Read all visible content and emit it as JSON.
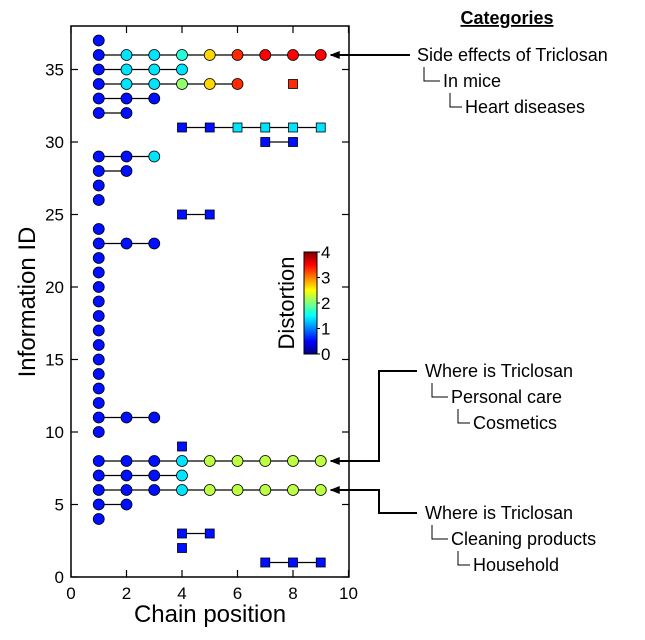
{
  "chart_data": {
    "type": "scatter",
    "title": "",
    "xlabel": "Chain position",
    "ylabel": "Information ID",
    "xlim": [
      0,
      10
    ],
    "ylim": [
      0,
      38
    ],
    "xticks": [
      0,
      2,
      4,
      6,
      8,
      10
    ],
    "yticks": [
      0,
      5,
      10,
      15,
      20,
      25,
      30,
      35
    ],
    "grid": false,
    "colorbar": {
      "label": "Distortion",
      "min": 0,
      "max": 4,
      "ticks": [
        0,
        1,
        2,
        3,
        4
      ],
      "colormap": "jet"
    },
    "marker_legend": {
      "circle": "",
      "square": ""
    },
    "chains": [
      {
        "id": 37,
        "marker": "circle",
        "points": [
          [
            1,
            0
          ]
        ]
      },
      {
        "id": 36,
        "marker": "circle",
        "points": [
          [
            1,
            0
          ],
          [
            2,
            1
          ],
          [
            3,
            1
          ],
          [
            4,
            1.3
          ],
          [
            5,
            2.5
          ],
          [
            6,
            3.3
          ],
          [
            7,
            3.5
          ],
          [
            8,
            3.5
          ],
          [
            9,
            3.5
          ]
        ]
      },
      {
        "id": 35,
        "marker": "circle",
        "points": [
          [
            1,
            0
          ],
          [
            2,
            1
          ],
          [
            3,
            1
          ],
          [
            4,
            1
          ]
        ]
      },
      {
        "id": 34,
        "marker": "circle",
        "points": [
          [
            1,
            0
          ],
          [
            2,
            1
          ],
          [
            3,
            1
          ],
          [
            4,
            1.8
          ],
          [
            5,
            2.5
          ],
          [
            6,
            3.3
          ]
        ]
      },
      {
        "id": 34,
        "marker": "square",
        "points": [
          [
            8,
            3.3
          ]
        ]
      },
      {
        "id": 33,
        "marker": "circle",
        "points": [
          [
            1,
            0
          ],
          [
            2,
            0
          ],
          [
            3,
            0
          ]
        ]
      },
      {
        "id": 32,
        "marker": "circle",
        "points": [
          [
            1,
            0
          ],
          [
            2,
            0
          ]
        ]
      },
      {
        "id": 31,
        "marker": "square",
        "points": [
          [
            4,
            0
          ],
          [
            5,
            0
          ],
          [
            6,
            1
          ],
          [
            7,
            1
          ],
          [
            8,
            1
          ],
          [
            9,
            1
          ]
        ]
      },
      {
        "id": 30,
        "marker": "square",
        "points": [
          [
            7,
            0
          ],
          [
            8,
            0
          ]
        ]
      },
      {
        "id": 29,
        "marker": "circle",
        "points": [
          [
            1,
            0
          ],
          [
            2,
            0
          ],
          [
            3,
            1
          ]
        ]
      },
      {
        "id": 28,
        "marker": "circle",
        "points": [
          [
            1,
            0
          ],
          [
            2,
            0
          ]
        ]
      },
      {
        "id": 27,
        "marker": "circle",
        "points": [
          [
            1,
            0
          ]
        ]
      },
      {
        "id": 26,
        "marker": "circle",
        "points": [
          [
            1,
            0
          ]
        ]
      },
      {
        "id": 25,
        "marker": "square",
        "points": [
          [
            4,
            0
          ],
          [
            5,
            0
          ]
        ]
      },
      {
        "id": 24,
        "marker": "circle",
        "points": [
          [
            1,
            0
          ]
        ]
      },
      {
        "id": 23,
        "marker": "circle",
        "points": [
          [
            1,
            0
          ],
          [
            2,
            0
          ],
          [
            3,
            0
          ]
        ]
      },
      {
        "id": 22,
        "marker": "circle",
        "points": [
          [
            1,
            0
          ]
        ]
      },
      {
        "id": 21,
        "marker": "circle",
        "points": [
          [
            1,
            0
          ]
        ]
      },
      {
        "id": 20,
        "marker": "circle",
        "points": [
          [
            1,
            0
          ]
        ]
      },
      {
        "id": 19,
        "marker": "circle",
        "points": [
          [
            1,
            0
          ]
        ]
      },
      {
        "id": 18,
        "marker": "circle",
        "points": [
          [
            1,
            0
          ]
        ]
      },
      {
        "id": 17,
        "marker": "circle",
        "points": [
          [
            1,
            0
          ]
        ]
      },
      {
        "id": 16,
        "marker": "circle",
        "points": [
          [
            1,
            0
          ]
        ]
      },
      {
        "id": 15,
        "marker": "circle",
        "points": [
          [
            1,
            0
          ]
        ]
      },
      {
        "id": 14,
        "marker": "circle",
        "points": [
          [
            1,
            0
          ]
        ]
      },
      {
        "id": 13,
        "marker": "circle",
        "points": [
          [
            1,
            0
          ]
        ]
      },
      {
        "id": 12,
        "marker": "circle",
        "points": [
          [
            1,
            0
          ]
        ]
      },
      {
        "id": 11,
        "marker": "circle",
        "points": [
          [
            1,
            0
          ],
          [
            2,
            0
          ],
          [
            3,
            0
          ]
        ]
      },
      {
        "id": 10,
        "marker": "circle",
        "points": [
          [
            1,
            0
          ]
        ]
      },
      {
        "id": 9,
        "marker": "square",
        "points": [
          [
            4,
            0
          ]
        ]
      },
      {
        "id": 8,
        "marker": "circle",
        "points": [
          [
            1,
            0
          ],
          [
            2,
            0
          ],
          [
            3,
            0
          ],
          [
            4,
            1
          ],
          [
            5,
            2
          ],
          [
            6,
            2
          ],
          [
            7,
            2
          ],
          [
            8,
            2
          ],
          [
            9,
            2
          ]
        ]
      },
      {
        "id": 7,
        "marker": "circle",
        "points": [
          [
            1,
            0
          ],
          [
            2,
            0
          ],
          [
            3,
            0
          ],
          [
            4,
            1
          ]
        ]
      },
      {
        "id": 6,
        "marker": "circle",
        "points": [
          [
            1,
            0
          ],
          [
            2,
            0
          ],
          [
            3,
            0
          ],
          [
            4,
            1
          ],
          [
            5,
            2
          ],
          [
            6,
            2
          ],
          [
            7,
            2
          ],
          [
            8,
            2
          ],
          [
            9,
            2
          ]
        ]
      },
      {
        "id": 5,
        "marker": "circle",
        "points": [
          [
            1,
            0
          ],
          [
            2,
            0
          ]
        ]
      },
      {
        "id": 4,
        "marker": "circle",
        "points": [
          [
            1,
            0
          ]
        ]
      },
      {
        "id": 3,
        "marker": "square",
        "points": [
          [
            4,
            0
          ],
          [
            5,
            0
          ]
        ]
      },
      {
        "id": 2,
        "marker": "square",
        "points": [
          [
            4,
            0
          ]
        ]
      },
      {
        "id": 1,
        "marker": "square",
        "points": [
          [
            7,
            0
          ],
          [
            8,
            0
          ],
          [
            9,
            0
          ]
        ]
      }
    ],
    "annotations": {
      "header": "Categories",
      "groups": [
        {
          "target_id": 36,
          "target_x": 9,
          "lines": [
            "Side effects of Triclosan",
            "In mice",
            "Heart diseases"
          ]
        },
        {
          "target_id": 8,
          "target_x": 9,
          "lines": [
            "Where is Triclosan",
            "Personal care",
            "Cosmetics"
          ]
        },
        {
          "target_id": 6,
          "target_x": 9,
          "lines": [
            "Where is Triclosan",
            "Cleaning products",
            "Household"
          ]
        }
      ]
    }
  }
}
